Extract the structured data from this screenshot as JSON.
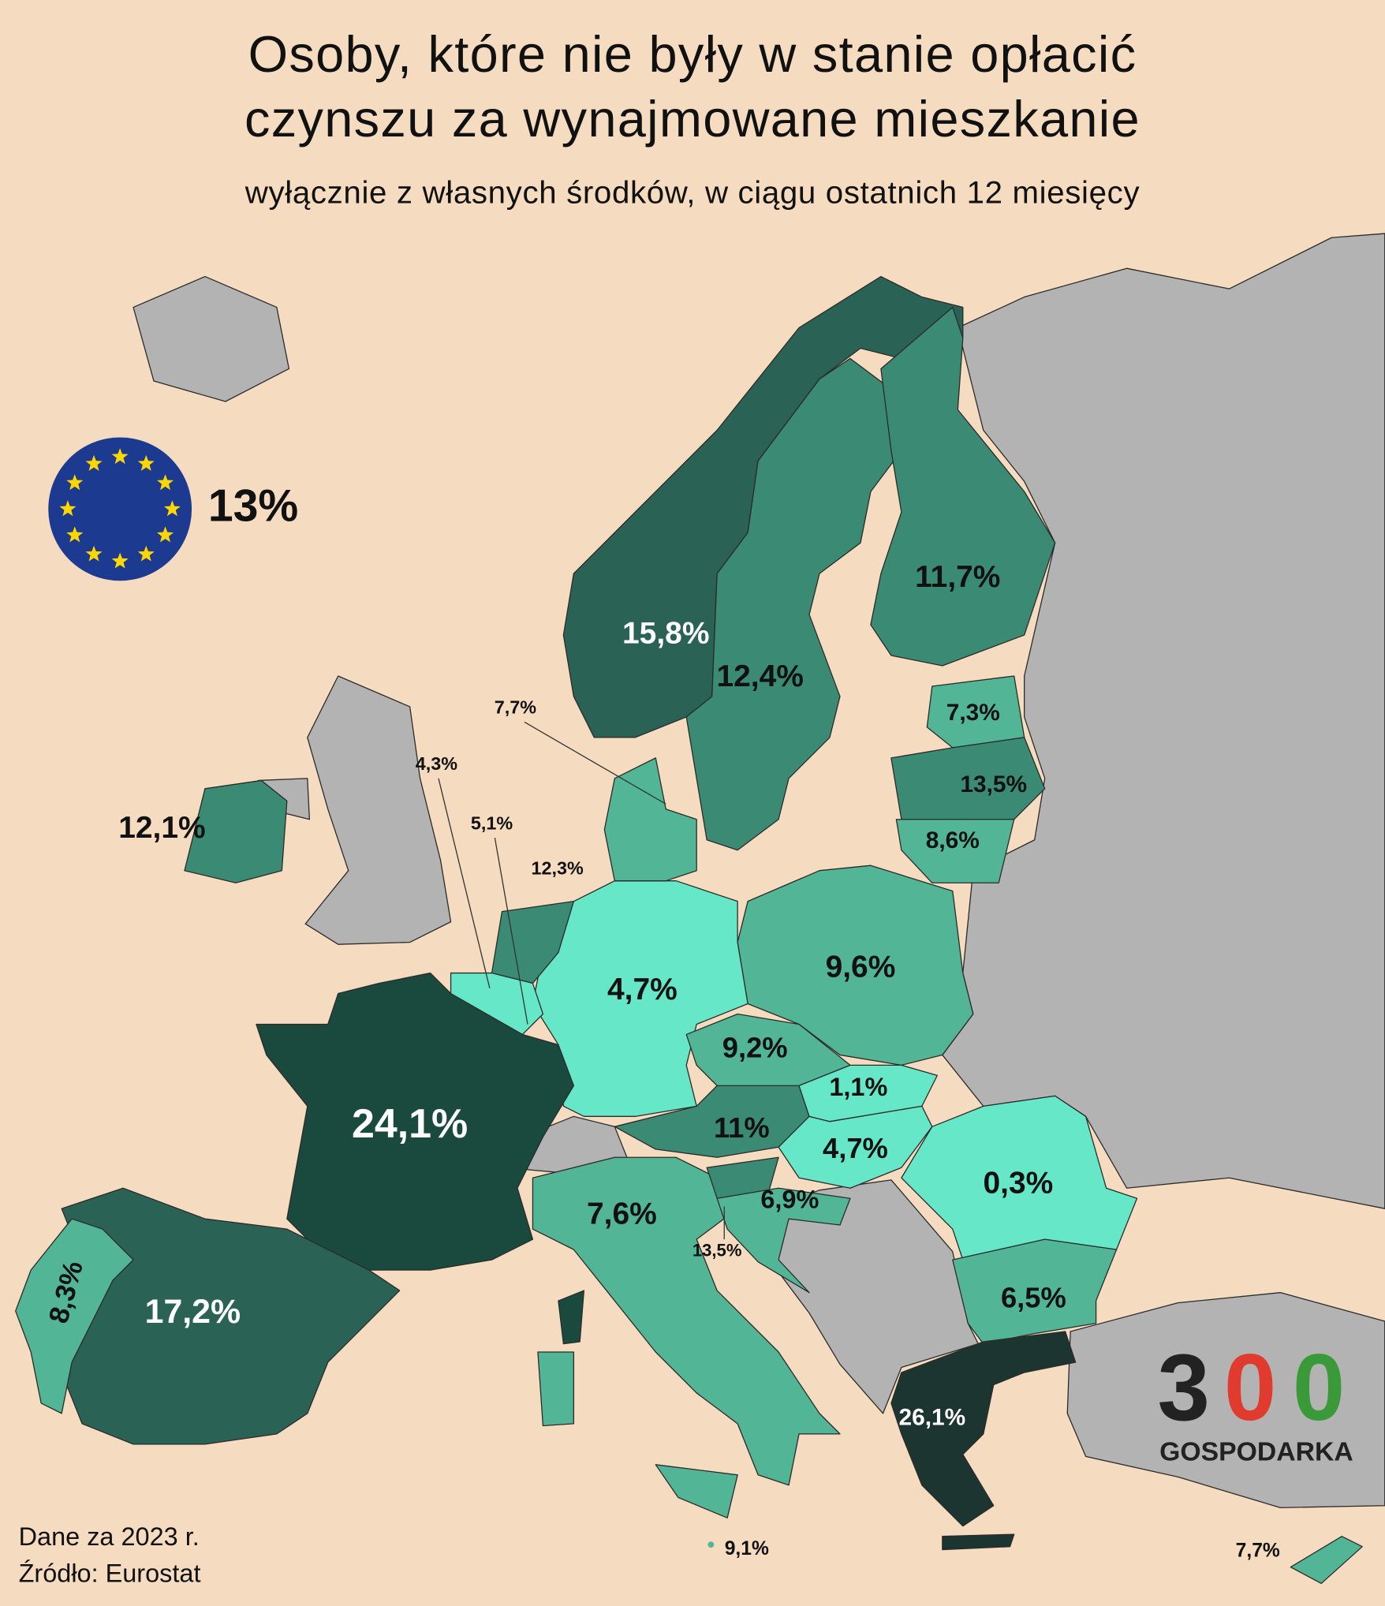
{
  "header": {
    "title_lines": [
      "Osoby, które nie były w stanie opłacić",
      "czynszu za wynajmowane mieszkanie"
    ],
    "subtitle": "wyłącznie z własnych środków, w ciągu ostatnich 12 miesięcy"
  },
  "eu": {
    "label": "13%"
  },
  "regions": [
    {
      "label": "15,8%"
    },
    {
      "label": "12,4%"
    },
    {
      "label": "11,7%"
    },
    {
      "label": "7,3%"
    },
    {
      "label": "13,5%"
    },
    {
      "label": "8,6%"
    },
    {
      "label": "12,1%"
    },
    {
      "label": "7,7%"
    },
    {
      "label": "4,3%"
    },
    {
      "label": "5,1%"
    },
    {
      "label": "12,3%"
    },
    {
      "label": "4,7%"
    },
    {
      "label": "9,6%"
    },
    {
      "label": "9,2%"
    },
    {
      "label": "1,1%"
    },
    {
      "label": "11%"
    },
    {
      "label": "4,7%"
    },
    {
      "label": "0,3%"
    },
    {
      "label": "24,1%"
    },
    {
      "label": "7,6%"
    },
    {
      "label": "6,9%"
    },
    {
      "label": "13,5%"
    },
    {
      "label": "17,2%"
    },
    {
      "label": "8,3%"
    },
    {
      "label": "6,5%"
    },
    {
      "label": "26,1%"
    },
    {
      "label": "9,1%"
    },
    {
      "label": "7,7%"
    }
  ],
  "footer": {
    "lines": [
      "Dane za 2023 r.",
      "Źródło: Eurostat"
    ]
  },
  "logo": {
    "digits": [
      "3",
      "0",
      "0"
    ],
    "name": "GOSPODARKA"
  }
}
